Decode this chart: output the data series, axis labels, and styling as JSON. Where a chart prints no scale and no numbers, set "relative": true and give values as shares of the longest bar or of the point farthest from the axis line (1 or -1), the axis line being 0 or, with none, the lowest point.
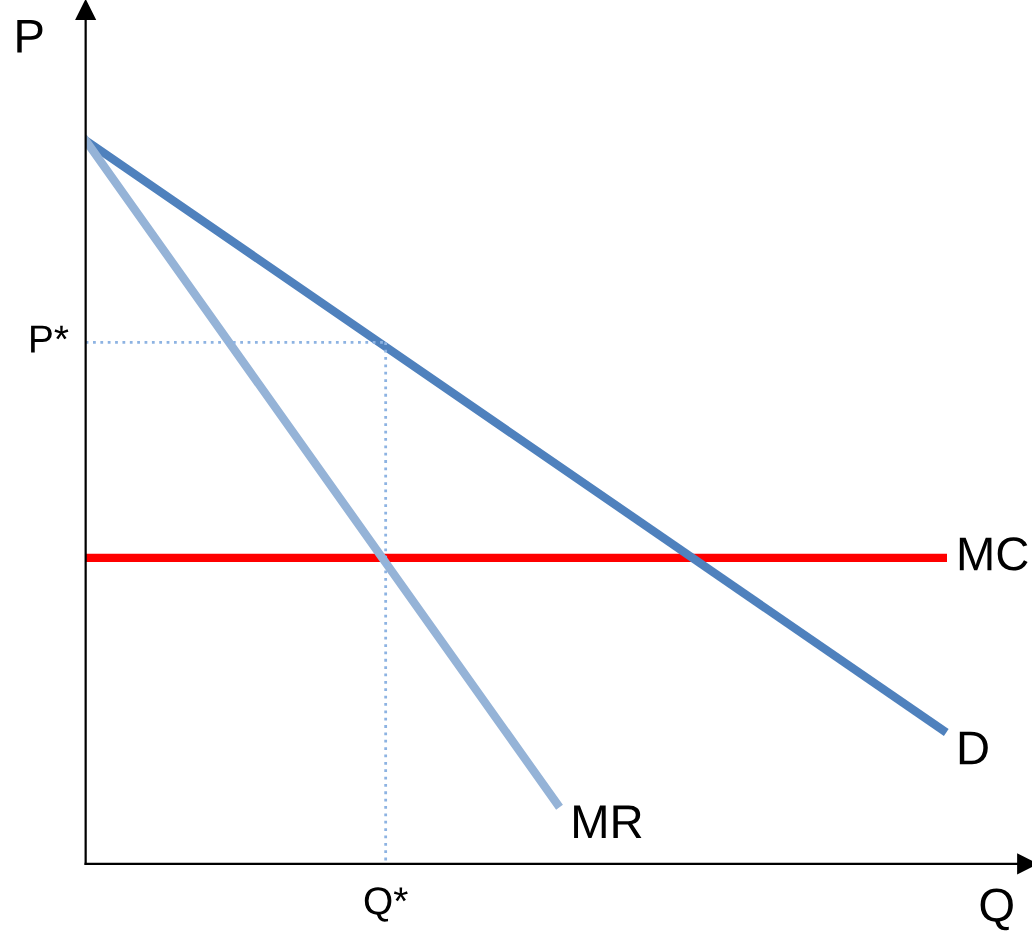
{
  "chart_data": {
    "type": "line",
    "relative": true,
    "xlabel": "Q",
    "ylabel": "P",
    "marker": "none",
    "categories": [
      null,
      null,
      null,
      null,
      null,
      null,
      null,
      null,
      null,
      null,
      null,
      null,
      null,
      null,
      null,
      null,
      null,
      null,
      null,
      null,
      null
    ],
    "series": [
      {
        "name": "MC",
        "color": "#ff0000",
        "values": [
          0.423,
          null,
          null,
          null,
          null,
          null,
          null,
          null,
          null,
          null,
          null,
          null,
          null,
          null,
          null,
          null,
          null,
          null,
          null,
          null,
          0.423
        ]
      },
      {
        "name": "D",
        "color": "#4f81bd",
        "values": [
          1,
          null,
          null,
          null,
          null,
          null,
          null,
          null,
          null,
          null,
          null,
          null,
          null,
          null,
          null,
          null,
          null,
          null,
          null,
          null,
          0.185
        ]
      },
      {
        "name": "MR",
        "color": "#95b3d7",
        "values": [
          1,
          null,
          null,
          null,
          null,
          null,
          null,
          null,
          null,
          null,
          null,
          0.083,
          null,
          null,
          null,
          null,
          null,
          null,
          null,
          null,
          null
        ]
      },
      {
        "color": "#8db3e2",
        "line_style": "dotted",
        "values": [
          0.721,
          null,
          null,
          null,
          null,
          null,
          null,
          0.721,
          null,
          null,
          null,
          null,
          null,
          null,
          null,
          null,
          null,
          null,
          null,
          null,
          null
        ]
      }
    ],
    "annotations": [
      "P*",
      "Q*"
    ]
  }
}
